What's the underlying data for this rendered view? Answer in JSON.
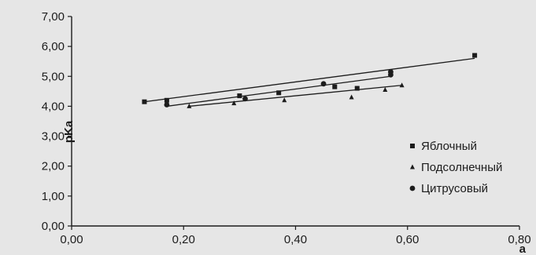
{
  "chart_data": {
    "type": "scatter",
    "title": "",
    "xlabel": "a",
    "ylabel": "pKa",
    "xlim": [
      0,
      0.8
    ],
    "ylim": [
      0,
      7
    ],
    "x_ticks": [
      "0,00",
      "0,20",
      "0,40",
      "0,60",
      "0,80"
    ],
    "y_ticks": [
      "0,00",
      "1,00",
      "2,00",
      "3,00",
      "4,00",
      "5,00",
      "6,00",
      "7,00"
    ],
    "grid": false,
    "legend_position": "right",
    "series": [
      {
        "name": "Яблочный",
        "marker": "square",
        "points": [
          {
            "x": 0.13,
            "y": 4.15
          },
          {
            "x": 0.17,
            "y": 4.2
          },
          {
            "x": 0.3,
            "y": 4.35
          },
          {
            "x": 0.37,
            "y": 4.45
          },
          {
            "x": 0.47,
            "y": 4.65
          },
          {
            "x": 0.51,
            "y": 4.6
          },
          {
            "x": 0.57,
            "y": 5.1
          },
          {
            "x": 0.72,
            "y": 5.7
          }
        ],
        "trendline": {
          "x": [
            0.13,
            0.72
          ],
          "y": [
            4.15,
            5.6
          ]
        }
      },
      {
        "name": "Подсолнечный",
        "marker": "triangle",
        "points": [
          {
            "x": 0.21,
            "y": 4.0
          },
          {
            "x": 0.29,
            "y": 4.1
          },
          {
            "x": 0.38,
            "y": 4.2
          },
          {
            "x": 0.5,
            "y": 4.3
          },
          {
            "x": 0.56,
            "y": 4.55
          },
          {
            "x": 0.59,
            "y": 4.7
          }
        ],
        "trendline": {
          "x": [
            0.21,
            0.59
          ],
          "y": [
            4.0,
            4.7
          ]
        }
      },
      {
        "name": "Цитрусовый",
        "marker": "circle",
        "points": [
          {
            "x": 0.17,
            "y": 4.05
          },
          {
            "x": 0.31,
            "y": 4.25
          },
          {
            "x": 0.45,
            "y": 4.75
          },
          {
            "x": 0.57,
            "y": 5.05
          },
          {
            "x": 0.57,
            "y": 5.15
          }
        ],
        "trendline": {
          "x": [
            0.17,
            0.57
          ],
          "y": [
            4.0,
            5.0
          ]
        }
      }
    ],
    "colors": {
      "ink": "#1c1c1c",
      "background": "#e6e6e6"
    }
  }
}
